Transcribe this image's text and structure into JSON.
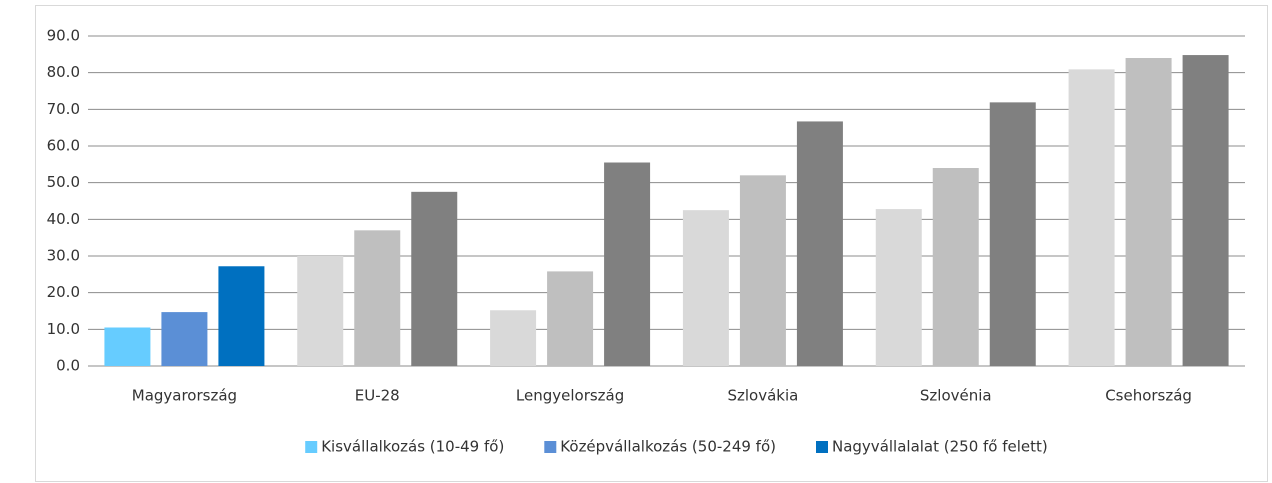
{
  "chart_data": {
    "type": "bar",
    "categories": [
      "Magyarország",
      "EU-28",
      "Lengyelország",
      "Szlovákia",
      "Szlovénia",
      "Csehország"
    ],
    "series": [
      {
        "name": "Kisvállalkozás (10-49 fő)",
        "color": "#66ccff",
        "colors": [
          "#66ccff",
          "#d9d9d9",
          "#d9d9d9",
          "#d9d9d9",
          "#d9d9d9",
          "#d9d9d9"
        ],
        "values": [
          10.5,
          30.0,
          15.2,
          42.5,
          42.8,
          80.9
        ]
      },
      {
        "name": "Középvállalkozás  (50-249 fő)",
        "color": "#5b8fd6",
        "colors": [
          "#5b8fd6",
          "#bfbfbf",
          "#bfbfbf",
          "#bfbfbf",
          "#bfbfbf",
          "#bfbfbf"
        ],
        "values": [
          14.7,
          37.0,
          25.8,
          52.0,
          54.0,
          84.0
        ]
      },
      {
        "name": "Nagyvállalalat (250 fő felett)",
        "color": "#0070c0",
        "colors": [
          "#0070c0",
          "#808080",
          "#808080",
          "#808080",
          "#808080",
          "#808080"
        ],
        "values": [
          27.2,
          47.5,
          55.5,
          66.7,
          71.9,
          84.8
        ]
      }
    ],
    "ylim": [
      0,
      90
    ],
    "yticks": [
      {
        "value": 0,
        "label": "0.0"
      },
      {
        "value": 10,
        "label": "10.0"
      },
      {
        "value": 20,
        "label": "20.0"
      },
      {
        "value": 30,
        "label": "30.0"
      },
      {
        "value": 40,
        "label": "40.0"
      },
      {
        "value": 50,
        "label": "50.0"
      },
      {
        "value": 60,
        "label": "60.0"
      },
      {
        "value": 70,
        "label": "70.0"
      },
      {
        "value": 80,
        "label": "80.0"
      },
      {
        "value": 90,
        "label": "90.0"
      }
    ],
    "grid": true,
    "legend": "bottom"
  }
}
